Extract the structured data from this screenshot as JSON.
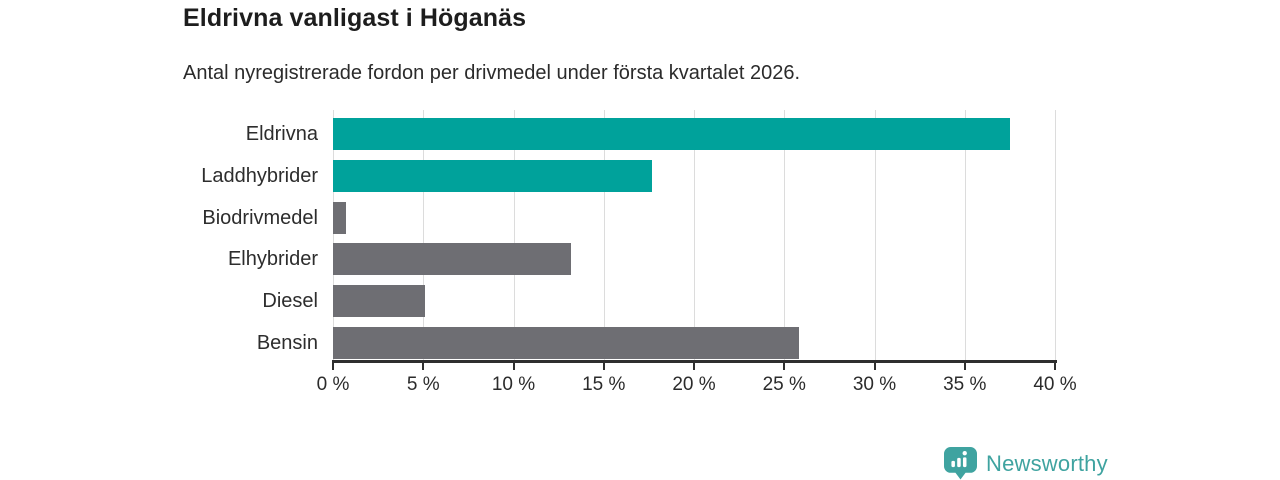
{
  "header": {
    "title": "Eldrivna vanligast i Höganäs",
    "subtitle": "Antal nyregistrerade fordon per drivmedel under första kvartalet 2026."
  },
  "chart_data": {
    "type": "bar",
    "orientation": "horizontal",
    "title": "Eldrivna vanligast i Höganäs",
    "subtitle": "Antal nyregistrerade fordon per drivmedel under första kvartalet 2026.",
    "categories": [
      "Eldrivna",
      "Laddhybrider",
      "Biodrivmedel",
      "Elhybrider",
      "Diesel",
      "Bensin"
    ],
    "values": [
      37.5,
      17.7,
      0.7,
      13.2,
      5.1,
      25.8
    ],
    "unit": "%",
    "bar_colors": [
      "#00a29b",
      "#00a29b",
      "#6e6e73",
      "#6e6e73",
      "#6e6e73",
      "#6e6e73"
    ],
    "xlabel": "",
    "ylabel": "",
    "xlim": [
      0,
      40
    ],
    "xticks": [
      0,
      5,
      10,
      15,
      20,
      25,
      30,
      35,
      40
    ],
    "xtick_labels": [
      "0 %",
      "5 %",
      "10 %",
      "15 %",
      "20 %",
      "25 %",
      "30 %",
      "35 %",
      "40 %"
    ],
    "grid": true,
    "legend": false
  },
  "footer": {
    "brand": "Newsworthy"
  },
  "colors": {
    "highlight_teal": "#00a29b",
    "neutral_gray": "#6e6e73",
    "gridline": "#dcdcdc",
    "axis": "#2f2f2f",
    "title_text": "#1d1d1d",
    "body_text": "#2b2b2b",
    "brand_teal": "#3fa3a0",
    "background": "#ffffff"
  }
}
